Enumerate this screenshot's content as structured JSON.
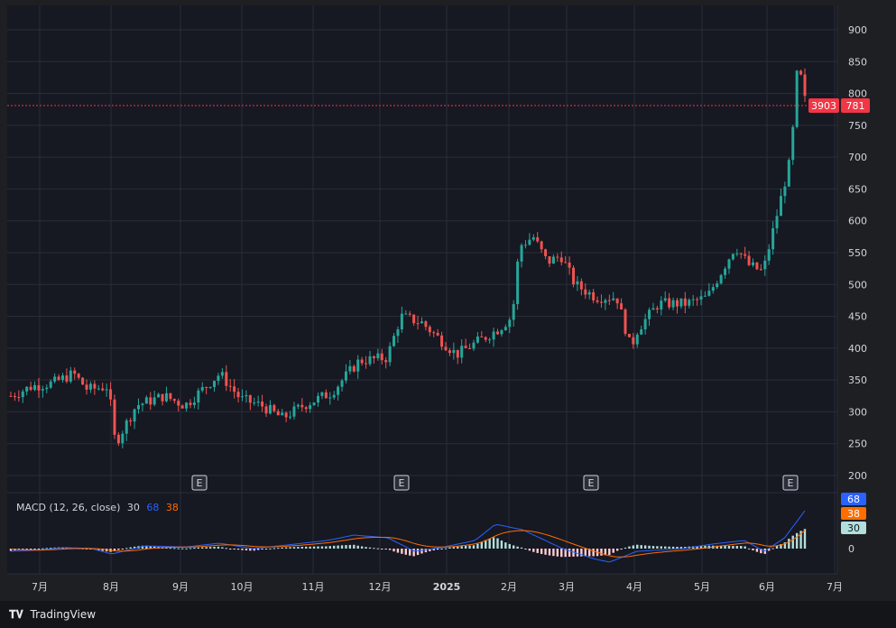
{
  "colors": {
    "up": "#26a69a",
    "down": "#ef5350",
    "macd": "#2962ff",
    "signal": "#ff6d00",
    "hist_up": "#b2dfdb",
    "hist_dn": "#ffcdd2",
    "grid": "#2a2e39",
    "bg": "#1e1f23",
    "price_line": "#f23645"
  },
  "chart_data": {
    "type": "candlestick",
    "price_axis": {
      "ticks": [
        "900",
        "850",
        "800",
        "750",
        "700",
        "650",
        "600",
        "550",
        "500",
        "450",
        "400",
        "350",
        "300",
        "250",
        "200"
      ],
      "ylim": [
        180,
        920
      ]
    },
    "x_axis": {
      "ticks": [
        "7月",
        "8月",
        "9月",
        "10月",
        "11月",
        "12月",
        "2025",
        "2月",
        "3月",
        "4月",
        "5月",
        "6月",
        "7月"
      ]
    },
    "earnings_markers": [
      "E",
      "E",
      "E",
      "E"
    ],
    "price_label": {
      "volume": "3903",
      "last": "781",
      "value": 781
    },
    "macd": {
      "title": "MACD (12, 26, close)",
      "values": {
        "hist": "30",
        "macd": "68",
        "signal": "38"
      },
      "axis_tick": "0",
      "keypoints": [
        [
          0,
          -5
        ],
        [
          20,
          -3
        ],
        [
          40,
          2
        ],
        [
          60,
          0
        ],
        [
          75,
          -10
        ],
        [
          100,
          5
        ],
        [
          130,
          3
        ],
        [
          155,
          10
        ],
        [
          180,
          0
        ],
        [
          210,
          8
        ],
        [
          235,
          15
        ],
        [
          255,
          25
        ],
        [
          280,
          20
        ],
        [
          300,
          -5
        ],
        [
          320,
          2
        ],
        [
          345,
          15
        ],
        [
          360,
          45
        ],
        [
          380,
          35
        ],
        [
          410,
          0
        ],
        [
          435,
          -20
        ],
        [
          445,
          -25
        ],
        [
          465,
          -5
        ],
        [
          500,
          0
        ],
        [
          520,
          8
        ],
        [
          545,
          15
        ],
        [
          560,
          -5
        ],
        [
          575,
          20
        ],
        [
          590,
          70
        ]
      ]
    },
    "price_keypoints": [
      [
        0,
        325
      ],
      [
        15,
        340
      ],
      [
        30,
        345
      ],
      [
        45,
        360
      ],
      [
        55,
        335
      ],
      [
        70,
        340
      ],
      [
        75,
        250
      ],
      [
        90,
        310
      ],
      [
        110,
        325
      ],
      [
        125,
        310
      ],
      [
        140,
        340
      ],
      [
        150,
        360
      ],
      [
        165,
        320
      ],
      [
        180,
        310
      ],
      [
        195,
        290
      ],
      [
        210,
        310
      ],
      [
        230,
        330
      ],
      [
        250,
        380
      ],
      [
        270,
        385
      ],
      [
        280,
        450
      ],
      [
        295,
        440
      ],
      [
        305,
        420
      ],
      [
        320,
        390
      ],
      [
        335,
        410
      ],
      [
        350,
        430
      ],
      [
        360,
        450
      ],
      [
        365,
        560
      ],
      [
        375,
        575
      ],
      [
        385,
        535
      ],
      [
        395,
        545
      ],
      [
        405,
        500
      ],
      [
        420,
        480
      ],
      [
        435,
        480
      ],
      [
        445,
        400
      ],
      [
        450,
        430
      ],
      [
        465,
        470
      ],
      [
        485,
        470
      ],
      [
        500,
        480
      ],
      [
        510,
        520
      ],
      [
        520,
        560
      ],
      [
        530,
        530
      ],
      [
        540,
        520
      ],
      [
        560,
        700
      ],
      [
        565,
        850
      ],
      [
        570,
        790
      ]
    ]
  },
  "brand": {
    "name": "TradingView",
    "icon": "tradingview-logo-icon"
  }
}
